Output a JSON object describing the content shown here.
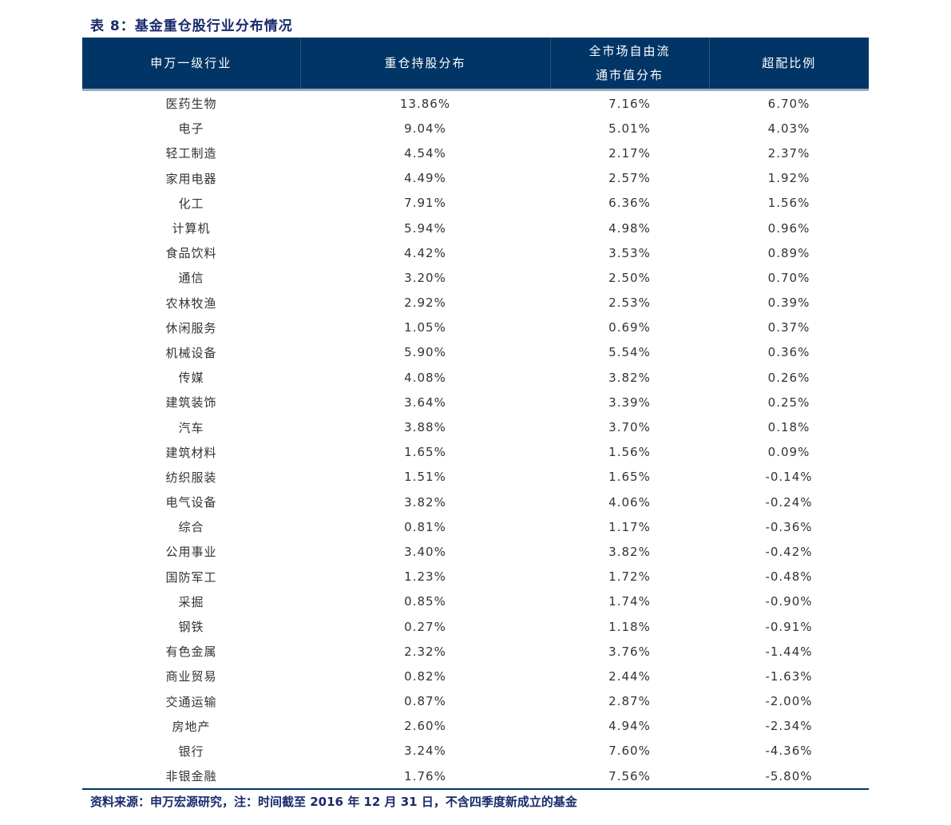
{
  "title": "表 8：基金重仓股行业分布情况",
  "headers": [
    "申万一级行业",
    "重仓持股分布",
    "全市场自由流通市值分布",
    "超配比例"
  ],
  "rows": [
    [
      "医药生物",
      "13.86%",
      "7.16%",
      "6.70%"
    ],
    [
      "电子",
      "9.04%",
      "5.01%",
      "4.03%"
    ],
    [
      "轻工制造",
      "4.54%",
      "2.17%",
      "2.37%"
    ],
    [
      "家用电器",
      "4.49%",
      "2.57%",
      "1.92%"
    ],
    [
      "化工",
      "7.91%",
      "6.36%",
      "1.56%"
    ],
    [
      "计算机",
      "5.94%",
      "4.98%",
      "0.96%"
    ],
    [
      "食品饮料",
      "4.42%",
      "3.53%",
      "0.89%"
    ],
    [
      "通信",
      "3.20%",
      "2.50%",
      "0.70%"
    ],
    [
      "农林牧渔",
      "2.92%",
      "2.53%",
      "0.39%"
    ],
    [
      "休闲服务",
      "1.05%",
      "0.69%",
      "0.37%"
    ],
    [
      "机械设备",
      "5.90%",
      "5.54%",
      "0.36%"
    ],
    [
      "传媒",
      "4.08%",
      "3.82%",
      "0.26%"
    ],
    [
      "建筑装饰",
      "3.64%",
      "3.39%",
      "0.25%"
    ],
    [
      "汽车",
      "3.88%",
      "3.70%",
      "0.18%"
    ],
    [
      "建筑材料",
      "1.65%",
      "1.56%",
      "0.09%"
    ],
    [
      "纺织服装",
      "1.51%",
      "1.65%",
      "-0.14%"
    ],
    [
      "电气设备",
      "3.82%",
      "4.06%",
      "-0.24%"
    ],
    [
      "综合",
      "0.81%",
      "1.17%",
      "-0.36%"
    ],
    [
      "公用事业",
      "3.40%",
      "3.82%",
      "-0.42%"
    ],
    [
      "国防军工",
      "1.23%",
      "1.72%",
      "-0.48%"
    ],
    [
      "采掘",
      "0.85%",
      "1.74%",
      "-0.90%"
    ],
    [
      "钢铁",
      "0.27%",
      "1.18%",
      "-0.91%"
    ],
    [
      "有色金属",
      "2.32%",
      "3.76%",
      "-1.44%"
    ],
    [
      "商业贸易",
      "0.82%",
      "2.44%",
      "-1.63%"
    ],
    [
      "交通运输",
      "0.87%",
      "2.87%",
      "-2.00%"
    ],
    [
      "房地产",
      "2.60%",
      "4.94%",
      "-2.34%"
    ],
    [
      "银行",
      "3.24%",
      "7.60%",
      "-4.36%"
    ],
    [
      "非银金融",
      "1.76%",
      "7.56%",
      "-5.80%"
    ]
  ],
  "source": "资料来源：申万宏源研究，注：时间截至 2016 年 12 月 31 日，不含四季度新成立的基金"
}
